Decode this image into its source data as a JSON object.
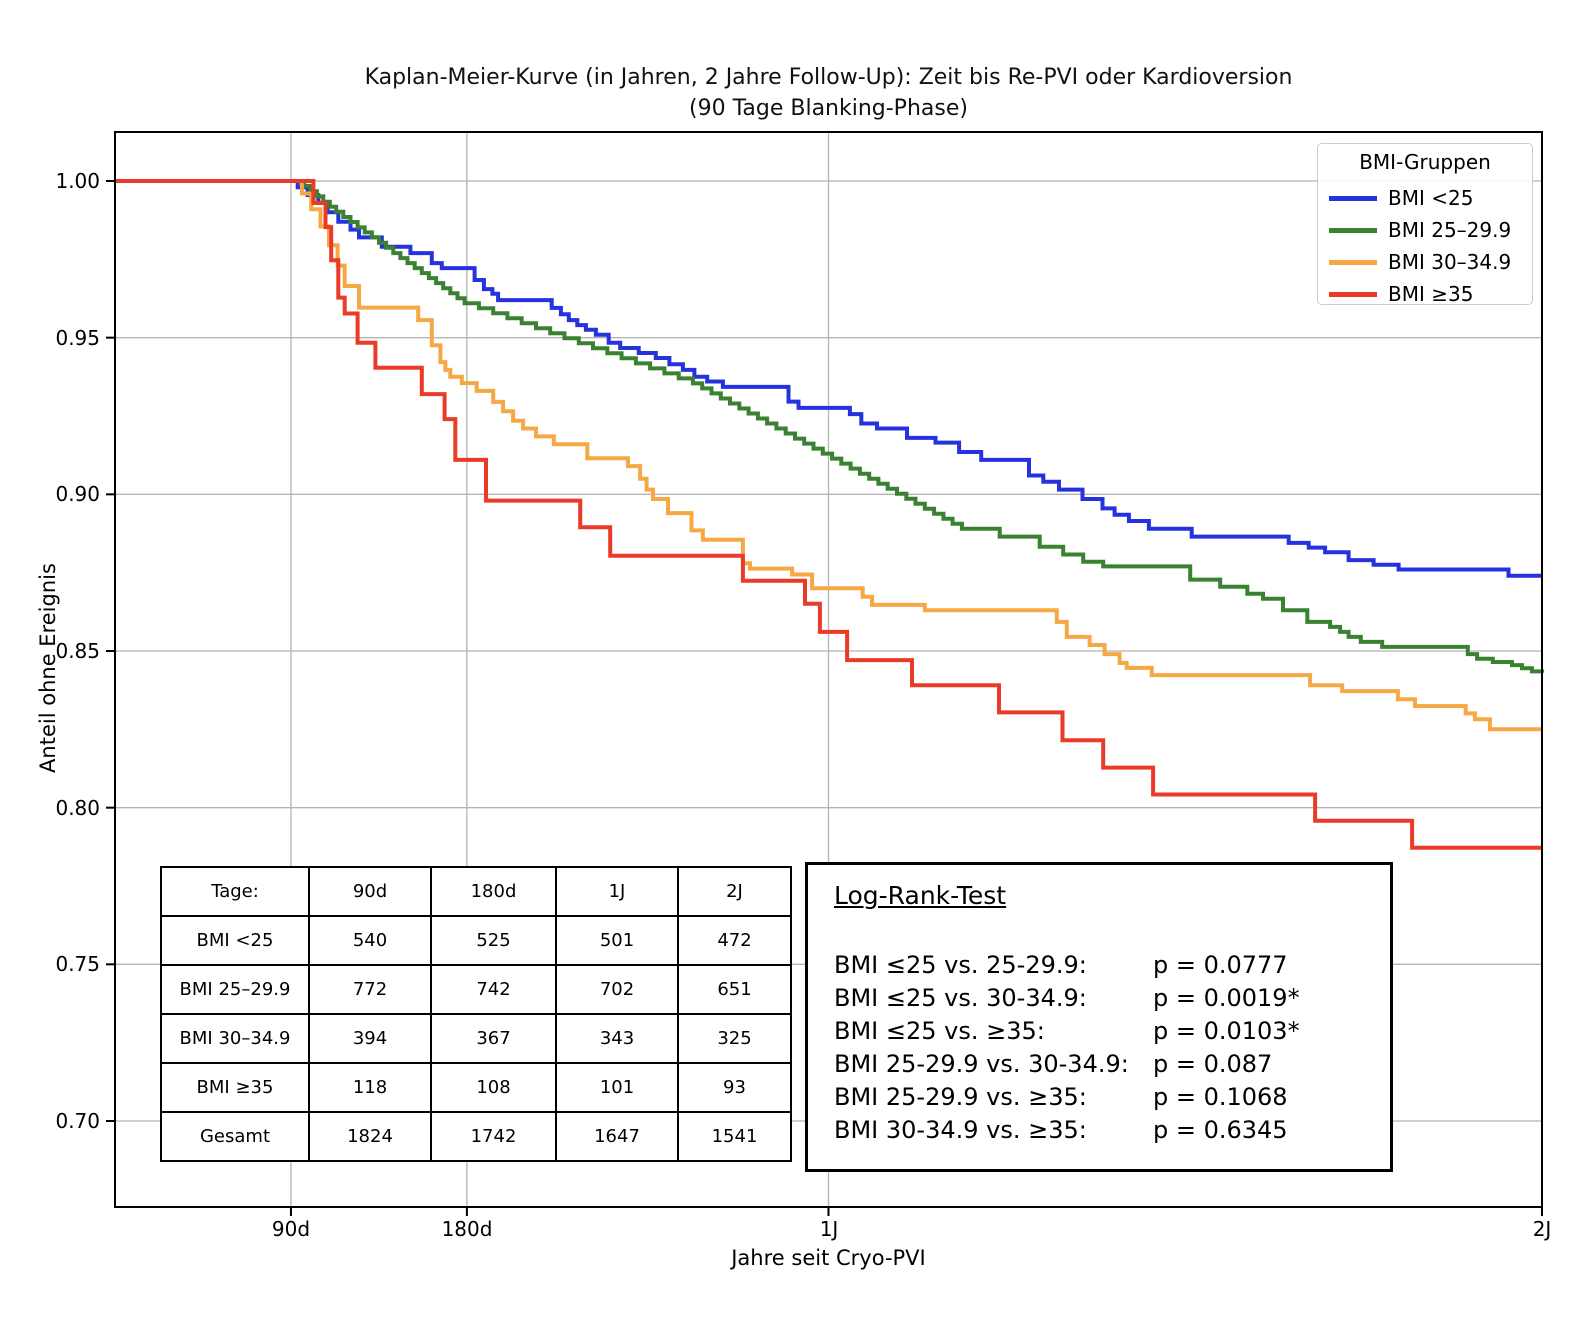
{
  "title": {
    "line1": "Kaplan-Meier-Kurve (in Jahren, 2 Jahre Follow-Up): Zeit bis Re-PVI oder Kardioversion",
    "line2": "(90 Tage Blanking-Phase)"
  },
  "axes": {
    "ylabel": "Anteil ohne Ereignis",
    "xlabel": "Jahre seit Cryo-PVI",
    "yticks": [
      "1.00",
      "0.95",
      "0.90",
      "0.85",
      "0.80",
      "0.75",
      "0.70"
    ],
    "xticks": [
      "90d",
      "180d",
      "1J",
      "2J"
    ]
  },
  "legend": {
    "title": "BMI-Gruppen",
    "entries": [
      {
        "label": "BMI <25",
        "color": "#2433dd"
      },
      {
        "label": "BMI 25–29.9",
        "color": "#3b8132"
      },
      {
        "label": "BMI 30–34.9",
        "color": "#f5a843"
      },
      {
        "label": "BMI ≥35",
        "color": "#ea3b28"
      }
    ]
  },
  "risk_table": {
    "header": [
      "Tage:",
      "90d",
      "180d",
      "1J",
      "2J"
    ],
    "rows": [
      {
        "label": "BMI <25",
        "values": [
          "540",
          "525",
          "501",
          "472"
        ]
      },
      {
        "label": "BMI 25–29.9",
        "values": [
          "772",
          "742",
          "702",
          "651"
        ]
      },
      {
        "label": "BMI 30–34.9",
        "values": [
          "394",
          "367",
          "343",
          "325"
        ]
      },
      {
        "label": "BMI ≥35",
        "values": [
          "118",
          "108",
          "101",
          "93"
        ]
      },
      {
        "label": "Gesamt",
        "values": [
          "1824",
          "1742",
          "1647",
          "1541"
        ]
      }
    ]
  },
  "logrank": {
    "heading": "Log-Rank-Test",
    "comparisons": [
      {
        "label": "BMI ≤25 vs. 25-29.9:",
        "p": "p = 0.0777"
      },
      {
        "label": "BMI ≤25 vs. 30-34.9:",
        "p": "p = 0.0019*"
      },
      {
        "label": "BMI ≤25 vs. ≥35:",
        "p": "p = 0.0103*"
      },
      {
        "label": "BMI 25-29.9 vs. 30-34.9:",
        "p": "p = 0.087"
      },
      {
        "label": "BMI 25-29.9 vs. ≥35:",
        "p": "p = 0.1068"
      },
      {
        "label": "BMI 30-34.9 vs. ≥35:",
        "p": "p = 0.6345"
      }
    ]
  },
  "chart_data": {
    "type": "line",
    "variant": "kaplan-meier-step",
    "title": "Kaplan-Meier-Kurve (in Jahren, 2 Jahre Follow-Up): Zeit bis Re-PVI oder Kardioversion (90 Tage Blanking-Phase)",
    "xlabel": "Jahre seit Cryo-PVI",
    "ylabel": "Anteil ohne Ereignis",
    "x_range_years": [
      0,
      2
    ],
    "y_ticks": [
      1.0,
      0.95,
      0.9,
      0.85,
      0.8,
      0.75,
      0.7
    ],
    "x_tick_positions_years": [
      0.2466,
      0.4932,
      1.0,
      2.0
    ],
    "x_tick_labels": [
      "90d",
      "180d",
      "1J",
      "2J"
    ],
    "grid": true,
    "grid_color": "#b4b4b4",
    "legend_position": "upper right",
    "series": [
      {
        "name": "BMI <25",
        "color": "#2433dd",
        "points": [
          [
            0,
            1.0
          ],
          [
            0.256,
            0.998
          ],
          [
            0.27,
            0.9955
          ],
          [
            0.285,
            0.993
          ],
          [
            0.298,
            0.99
          ],
          [
            0.313,
            0.987
          ],
          [
            0.33,
            0.9845
          ],
          [
            0.342,
            0.982
          ],
          [
            0.374,
            0.979
          ],
          [
            0.414,
            0.977
          ],
          [
            0.444,
            0.9738
          ],
          [
            0.458,
            0.9722
          ],
          [
            0.504,
            0.9684
          ],
          [
            0.517,
            0.9655
          ],
          [
            0.529,
            0.964
          ],
          [
            0.537,
            0.962
          ],
          [
            0.612,
            0.9595
          ],
          [
            0.625,
            0.9575
          ],
          [
            0.636,
            0.9556
          ],
          [
            0.648,
            0.954
          ],
          [
            0.66,
            0.9525
          ],
          [
            0.674,
            0.9509
          ],
          [
            0.692,
            0.9484
          ],
          [
            0.708,
            0.9467
          ],
          [
            0.734,
            0.9451
          ],
          [
            0.758,
            0.9435
          ],
          [
            0.777,
            0.9415
          ],
          [
            0.796,
            0.9397
          ],
          [
            0.812,
            0.9375
          ],
          [
            0.83,
            0.936
          ],
          [
            0.852,
            0.9343
          ],
          [
            0.944,
            0.9296
          ],
          [
            0.958,
            0.9276
          ],
          [
            1.03,
            0.9256
          ],
          [
            1.046,
            0.9226
          ],
          [
            1.068,
            0.921
          ],
          [
            1.11,
            0.918
          ],
          [
            1.15,
            0.9165
          ],
          [
            1.183,
            0.9135
          ],
          [
            1.214,
            0.911
          ],
          [
            1.281,
            0.906
          ],
          [
            1.301,
            0.904
          ],
          [
            1.323,
            0.9015
          ],
          [
            1.356,
            0.8985
          ],
          [
            1.384,
            0.8955
          ],
          [
            1.401,
            0.8935
          ],
          [
            1.421,
            0.8915
          ],
          [
            1.449,
            0.889
          ],
          [
            1.509,
            0.8865
          ],
          [
            1.645,
            0.8845
          ],
          [
            1.673,
            0.883
          ],
          [
            1.696,
            0.8815
          ],
          [
            1.729,
            0.879
          ],
          [
            1.764,
            0.8775
          ],
          [
            1.799,
            0.876
          ],
          [
            1.953,
            0.874
          ],
          [
            2,
            0.874
          ]
        ]
      },
      {
        "name": "BMI 25–29.9",
        "color": "#3b8132",
        "points": [
          [
            0,
            1.0
          ],
          [
            0.265,
            0.9984
          ],
          [
            0.274,
            0.9967
          ],
          [
            0.283,
            0.9951
          ],
          [
            0.292,
            0.9934
          ],
          [
            0.301,
            0.9918
          ],
          [
            0.31,
            0.9902
          ],
          [
            0.32,
            0.9885
          ],
          [
            0.33,
            0.9869
          ],
          [
            0.34,
            0.9852
          ],
          [
            0.35,
            0.9836
          ],
          [
            0.36,
            0.982
          ],
          [
            0.37,
            0.9803
          ],
          [
            0.38,
            0.9787
          ],
          [
            0.39,
            0.977
          ],
          [
            0.4,
            0.9754
          ],
          [
            0.41,
            0.9738
          ],
          [
            0.42,
            0.9722
          ],
          [
            0.43,
            0.9706
          ],
          [
            0.44,
            0.969
          ],
          [
            0.45,
            0.9674
          ],
          [
            0.46,
            0.9658
          ],
          [
            0.47,
            0.9642
          ],
          [
            0.48,
            0.9626
          ],
          [
            0.49,
            0.961
          ],
          [
            0.51,
            0.9594
          ],
          [
            0.53,
            0.9578
          ],
          [
            0.55,
            0.9562
          ],
          [
            0.57,
            0.9546
          ],
          [
            0.59,
            0.953
          ],
          [
            0.61,
            0.9514
          ],
          [
            0.63,
            0.9498
          ],
          [
            0.65,
            0.9482
          ],
          [
            0.67,
            0.9466
          ],
          [
            0.69,
            0.945
          ],
          [
            0.71,
            0.9434
          ],
          [
            0.73,
            0.9418
          ],
          [
            0.75,
            0.9402
          ],
          [
            0.77,
            0.9386
          ],
          [
            0.79,
            0.937
          ],
          [
            0.81,
            0.9354
          ],
          [
            0.823,
            0.9338
          ],
          [
            0.836,
            0.9322
          ],
          [
            0.849,
            0.9306
          ],
          [
            0.862,
            0.929
          ],
          [
            0.875,
            0.9274
          ],
          [
            0.888,
            0.9258
          ],
          [
            0.901,
            0.9242
          ],
          [
            0.914,
            0.9226
          ],
          [
            0.927,
            0.921
          ],
          [
            0.94,
            0.9194
          ],
          [
            0.953,
            0.9178
          ],
          [
            0.966,
            0.9162
          ],
          [
            0.979,
            0.9146
          ],
          [
            0.992,
            0.913
          ],
          [
            1.005,
            0.9114
          ],
          [
            1.018,
            0.9098
          ],
          [
            1.031,
            0.9082
          ],
          [
            1.044,
            0.9066
          ],
          [
            1.057,
            0.905
          ],
          [
            1.07,
            0.9034
          ],
          [
            1.083,
            0.9018
          ],
          [
            1.096,
            0.9002
          ],
          [
            1.109,
            0.8986
          ],
          [
            1.122,
            0.897
          ],
          [
            1.135,
            0.8954
          ],
          [
            1.148,
            0.8938
          ],
          [
            1.161,
            0.8922
          ],
          [
            1.174,
            0.8906
          ],
          [
            1.187,
            0.889
          ],
          [
            1.24,
            0.8865
          ],
          [
            1.296,
            0.8833
          ],
          [
            1.329,
            0.8808
          ],
          [
            1.357,
            0.8785
          ],
          [
            1.385,
            0.877
          ],
          [
            1.507,
            0.8728
          ],
          [
            1.549,
            0.8705
          ],
          [
            1.587,
            0.8683
          ],
          [
            1.609,
            0.8667
          ],
          [
            1.637,
            0.863
          ],
          [
            1.671,
            0.8593
          ],
          [
            1.703,
            0.8577
          ],
          [
            1.717,
            0.8561
          ],
          [
            1.729,
            0.8545
          ],
          [
            1.746,
            0.8529
          ],
          [
            1.776,
            0.8513
          ],
          [
            1.896,
            0.849
          ],
          [
            1.909,
            0.8475
          ],
          [
            1.931,
            0.8465
          ],
          [
            1.958,
            0.8455
          ],
          [
            1.972,
            0.8445
          ],
          [
            1.986,
            0.8435
          ],
          [
            2,
            0.843
          ]
        ]
      },
      {
        "name": "BMI 30–34.9",
        "color": "#f5a843",
        "points": [
          [
            0,
            1.0
          ],
          [
            0.262,
            0.996
          ],
          [
            0.275,
            0.991
          ],
          [
            0.288,
            0.9855
          ],
          [
            0.3,
            0.9795
          ],
          [
            0.312,
            0.973
          ],
          [
            0.322,
            0.9665
          ],
          [
            0.342,
            0.9596
          ],
          [
            0.425,
            0.9556
          ],
          [
            0.444,
            0.9476
          ],
          [
            0.456,
            0.9422
          ],
          [
            0.463,
            0.9397
          ],
          [
            0.47,
            0.9375
          ],
          [
            0.486,
            0.9355
          ],
          [
            0.507,
            0.933
          ],
          [
            0.53,
            0.9295
          ],
          [
            0.544,
            0.9265
          ],
          [
            0.558,
            0.9235
          ],
          [
            0.572,
            0.921
          ],
          [
            0.59,
            0.9185
          ],
          [
            0.615,
            0.916
          ],
          [
            0.662,
            0.9115
          ],
          [
            0.719,
            0.909
          ],
          [
            0.736,
            0.905
          ],
          [
            0.745,
            0.9015
          ],
          [
            0.754,
            0.8985
          ],
          [
            0.775,
            0.894
          ],
          [
            0.808,
            0.8885
          ],
          [
            0.824,
            0.8855
          ],
          [
            0.88,
            0.878
          ],
          [
            0.89,
            0.8763
          ],
          [
            0.949,
            0.8744
          ],
          [
            0.977,
            0.87
          ],
          [
            1.048,
            0.8673
          ],
          [
            1.061,
            0.8647
          ],
          [
            1.135,
            0.863
          ],
          [
            1.32,
            0.8593
          ],
          [
            1.334,
            0.8545
          ],
          [
            1.366,
            0.8519
          ],
          [
            1.387,
            0.849
          ],
          [
            1.408,
            0.8462
          ],
          [
            1.418,
            0.8446
          ],
          [
            1.453,
            0.8423
          ],
          [
            1.675,
            0.8391
          ],
          [
            1.72,
            0.8372
          ],
          [
            1.798,
            0.8346
          ],
          [
            1.822,
            0.8324
          ],
          [
            1.893,
            0.8301
          ],
          [
            1.906,
            0.8282
          ],
          [
            1.927,
            0.825
          ],
          [
            2,
            0.825
          ]
        ]
      },
      {
        "name": "BMI ≥35",
        "color": "#ea3b28",
        "points": [
          [
            0,
            1.0
          ],
          [
            0.278,
            0.993
          ],
          [
            0.295,
            0.9853
          ],
          [
            0.303,
            0.9747
          ],
          [
            0.313,
            0.9628
          ],
          [
            0.322,
            0.9577
          ],
          [
            0.34,
            0.9484
          ],
          [
            0.365,
            0.9404
          ],
          [
            0.43,
            0.932
          ],
          [
            0.462,
            0.924
          ],
          [
            0.477,
            0.911
          ],
          [
            0.52,
            0.898
          ],
          [
            0.652,
            0.8895
          ],
          [
            0.694,
            0.8804
          ],
          [
            0.88,
            0.8724
          ],
          [
            0.967,
            0.8651
          ],
          [
            0.988,
            0.8561
          ],
          [
            1.026,
            0.8471
          ],
          [
            1.117,
            0.8391
          ],
          [
            1.239,
            0.8304
          ],
          [
            1.328,
            0.8215
          ],
          [
            1.385,
            0.8128
          ],
          [
            1.455,
            0.8042
          ],
          [
            1.682,
            0.7958
          ],
          [
            1.818,
            0.7872
          ],
          [
            2,
            0.7872
          ]
        ]
      }
    ]
  }
}
